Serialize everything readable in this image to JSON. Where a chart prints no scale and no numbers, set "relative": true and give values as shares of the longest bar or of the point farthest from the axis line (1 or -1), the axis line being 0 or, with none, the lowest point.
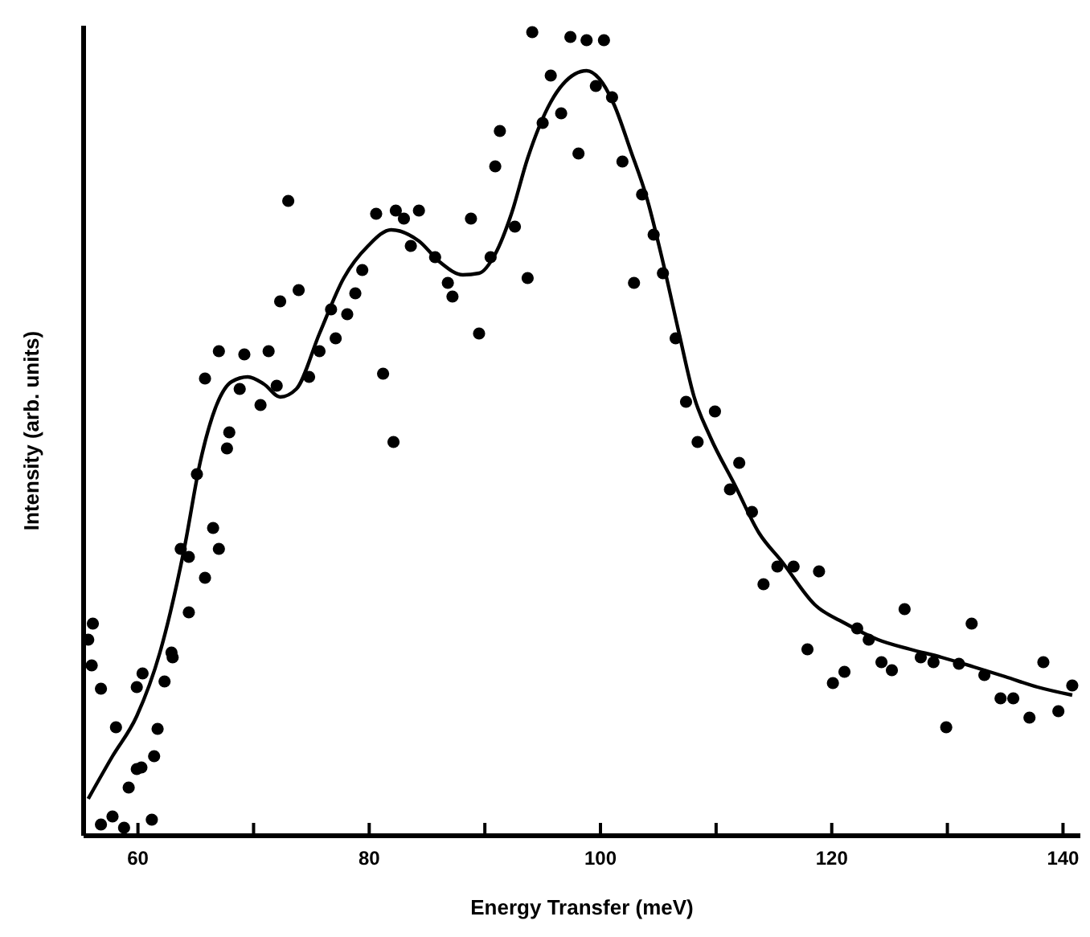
{
  "chart_data": {
    "type": "line",
    "xlabel": "Energy Transfer (meV)",
    "ylabel": "Intensity (arb. units)",
    "relative": true,
    "xlim": [
      55.3,
      141.5
    ],
    "xticks": [
      60,
      {
        "value": 70,
        "label": null
      },
      80,
      {
        "value": 90,
        "label": null
      },
      100,
      {
        "value": 110,
        "label": null
      },
      120,
      {
        "value": 130,
        "label": null
      },
      140
    ],
    "series": [
      {
        "type": "scatter",
        "color": "#000000",
        "marker": "circle",
        "x": [
          56.8,
          57.8,
          58.8,
          61.2,
          58.1,
          56.8,
          59.9,
          60.4,
          59.2,
          59.9,
          60.3,
          61.4,
          61.7,
          62.3,
          62.9,
          63.0,
          64.4,
          63.7,
          64.4,
          65.8,
          66.5,
          67.0,
          65.1,
          56.0,
          55.7,
          56.1,
          65.8,
          67.0,
          67.9,
          67.7,
          68.8,
          69.2,
          70.6,
          71.3,
          72.3,
          72.0,
          73.0,
          73.9,
          74.8,
          75.7,
          76.7,
          77.1,
          78.1,
          78.8,
          79.4,
          80.6,
          82.3,
          83.0,
          84.3,
          81.2,
          82.1,
          83.6,
          85.7,
          86.8,
          87.2,
          88.8,
          89.5,
          90.5,
          90.9,
          91.3,
          92.6,
          93.7,
          94.1,
          97.4,
          98.8,
          100.3,
          95.7,
          95.0,
          96.6,
          98.1,
          99.6,
          101.0,
          101.9,
          103.6,
          104.6,
          105.4,
          102.9,
          106.5,
          107.4,
          109.9,
          108.4,
          112.0,
          111.2,
          113.1,
          114.1,
          115.3,
          116.7,
          118.9,
          117.9,
          120.1,
          121.1,
          122.2,
          123.2,
          124.3,
          125.2,
          126.3,
          127.7,
          128.8,
          129.9,
          131.0,
          132.1,
          133.2,
          134.6,
          135.7,
          137.1,
          138.3,
          139.6,
          140.8
        ],
        "values": [
          0.014,
          0.024,
          0.01,
          0.02,
          0.135,
          0.183,
          0.185,
          0.202,
          0.06,
          0.083,
          0.085,
          0.099,
          0.133,
          0.192,
          0.228,
          0.222,
          0.278,
          0.357,
          0.347,
          0.321,
          0.383,
          0.357,
          0.45,
          0.212,
          0.244,
          0.264,
          0.569,
          0.603,
          0.502,
          0.482,
          0.556,
          0.599,
          0.536,
          0.603,
          0.665,
          0.56,
          0.79,
          0.679,
          0.571,
          0.603,
          0.655,
          0.619,
          0.649,
          0.675,
          0.704,
          0.774,
          0.778,
          0.768,
          0.778,
          0.575,
          0.49,
          0.734,
          0.72,
          0.688,
          0.671,
          0.768,
          0.625,
          0.72,
          0.833,
          0.877,
          0.758,
          0.694,
          1,
          0.994,
          0.99,
          0.99,
          0.946,
          0.887,
          0.899,
          0.849,
          0.933,
          0.919,
          0.839,
          0.798,
          0.748,
          0.7,
          0.688,
          0.619,
          0.54,
          0.528,
          0.49,
          0.464,
          0.431,
          0.403,
          0.313,
          0.335,
          0.335,
          0.329,
          0.232,
          0.19,
          0.204,
          0.258,
          0.244,
          0.216,
          0.206,
          0.282,
          0.222,
          0.216,
          0.135,
          0.214,
          0.264,
          0.2,
          0.171,
          0.171,
          0.147,
          0.216,
          0.155,
          0.187
        ]
      },
      {
        "color": "#000000",
        "marker": "none",
        "line_style": "solid",
        "x": [
          55.7,
          57.8,
          59.9,
          61.9,
          64.0,
          65.4,
          66.8,
          68.1,
          69.5,
          70.9,
          72.3,
          73.7,
          75.7,
          77.8,
          79.9,
          81.9,
          84.3,
          86.1,
          88.1,
          89.5,
          90.9,
          92.3,
          93.7,
          95.7,
          97.8,
          98.8,
          99.9,
          101.2,
          102.6,
          104.0,
          105.4,
          106.8,
          108.1,
          109.5,
          111.6,
          113.7,
          115.7,
          118.5,
          121.2,
          124.0,
          126.8,
          129.5,
          132.3,
          135.0,
          137.8,
          140.8
        ],
        "values": [
          0.046,
          0.099,
          0.149,
          0.228,
          0.357,
          0.466,
          0.536,
          0.565,
          0.571,
          0.562,
          0.546,
          0.556,
          0.625,
          0.694,
          0.734,
          0.754,
          0.74,
          0.714,
          0.698,
          0.7,
          0.724,
          0.774,
          0.843,
          0.913,
          0.948,
          0.952,
          0.942,
          0.909,
          0.853,
          0.794,
          0.714,
          0.625,
          0.546,
          0.496,
          0.437,
          0.377,
          0.341,
          0.288,
          0.264,
          0.244,
          0.232,
          0.222,
          0.21,
          0.198,
          0.185,
          0.175
        ]
      }
    ]
  }
}
